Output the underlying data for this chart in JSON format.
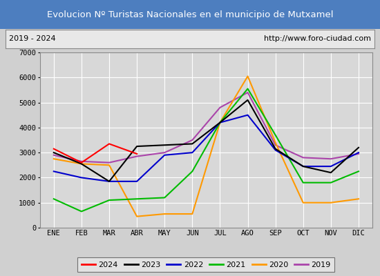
{
  "title": "Evolucion Nº Turistas Nacionales en el municipio de Mutxamel",
  "subtitle_left": "2019 - 2024",
  "subtitle_right": "http://www.foro-ciudad.com",
  "title_bg_color": "#4d7ebf",
  "title_text_color": "#ffffff",
  "months": [
    "ENE",
    "FEB",
    "MAR",
    "ABR",
    "MAY",
    "JUN",
    "JUL",
    "AGO",
    "SEP",
    "OCT",
    "NOV",
    "DIC"
  ],
  "ylim": [
    0,
    7000
  ],
  "yticks": [
    0,
    1000,
    2000,
    3000,
    4000,
    5000,
    6000,
    7000
  ],
  "series": {
    "2024": {
      "color": "#ff0000",
      "data": [
        3150,
        2600,
        3350,
        2950,
        null,
        null,
        null,
        null,
        null,
        null,
        null,
        null
      ]
    },
    "2023": {
      "color": "#000000",
      "data": [
        3000,
        2550,
        1850,
        3250,
        3300,
        3350,
        4200,
        5100,
        3150,
        2450,
        2200,
        3200
      ]
    },
    "2022": {
      "color": "#0000cc",
      "data": [
        2250,
        2000,
        1850,
        1850,
        2900,
        3000,
        4200,
        4500,
        3100,
        2450,
        2450,
        3000
      ]
    },
    "2021": {
      "color": "#00bb00",
      "data": [
        1150,
        650,
        1100,
        1150,
        1200,
        2250,
        4200,
        5550,
        3700,
        1800,
        1800,
        2250
      ]
    },
    "2020": {
      "color": "#ff9900",
      "data": [
        2750,
        2550,
        2500,
        450,
        550,
        550,
        4200,
        6050,
        3400,
        1000,
        1000,
        1150
      ]
    },
    "2019": {
      "color": "#aa44aa",
      "data": [
        2900,
        2650,
        2600,
        2850,
        3000,
        3500,
        4800,
        5400,
        3300,
        2800,
        2750,
        2950
      ]
    }
  },
  "legend_order": [
    "2024",
    "2023",
    "2022",
    "2021",
    "2020",
    "2019"
  ],
  "fig_bg_color": "#d0d0d0",
  "plot_bg_color": "#d8d8d8",
  "grid_color": "#ffffff",
  "subtitle_box_facecolor": "#e8e8e8",
  "subtitle_border_color": "#888888"
}
